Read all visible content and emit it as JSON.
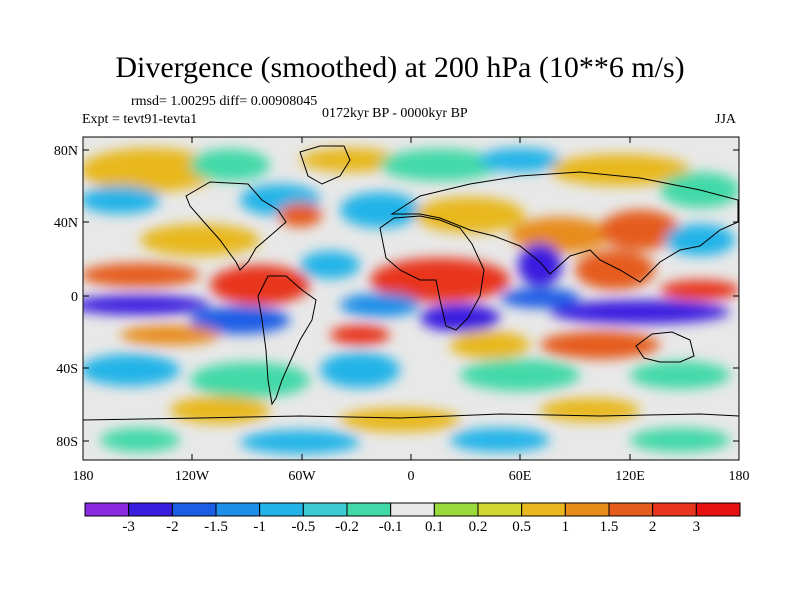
{
  "title": "Divergence (smoothed) at 200 hPa (10**6 m/s)",
  "stats": "rmsd= 1.00295 diff= 0.00908045",
  "experiment": "Expt = tevt91-tevta1",
  "period": "0172kyr BP - 0000kyr BP",
  "season": "JJA",
  "axes": {
    "x_ticks": [
      "180",
      "120W",
      "60W",
      "0",
      "60E",
      "120E",
      "180"
    ],
    "y_ticks": [
      "80N",
      "40N",
      "0",
      "40S",
      "80S"
    ]
  },
  "colorbar": {
    "labels": [
      "-3",
      "-2",
      "-1.5",
      "-1",
      "-0.5",
      "-0.2",
      "-0.1",
      "0.1",
      "0.2",
      "0.5",
      "1",
      "1.5",
      "2",
      "3"
    ],
    "colors": [
      "#8a2be2",
      "#3a1ee0",
      "#1c5de6",
      "#1e8fe8",
      "#22b4e8",
      "#3ccbd4",
      "#42d9a8",
      "#e8e8e8",
      "#9ad93c",
      "#d2d830",
      "#e8b81e",
      "#e88c1a",
      "#e65c1e",
      "#e8361e",
      "#e61010"
    ]
  },
  "map_colors": {
    "background": "#e8e8e8",
    "coast": "#000000"
  }
}
